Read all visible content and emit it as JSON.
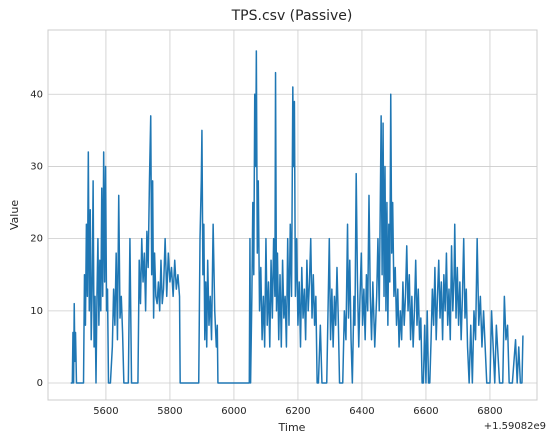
{
  "chart_data": {
    "type": "line",
    "title": "TPS.csv (Passive)",
    "xlabel": "Time",
    "ylabel": "Value",
    "x_offset_label": "+1.59082e9",
    "color": "#1f77b4",
    "grid": true,
    "xlim": [
      5419,
      6947
    ],
    "ylim": [
      -2.35,
      48.9
    ],
    "xticks": [
      5600,
      5800,
      6000,
      6200,
      6400,
      6600,
      6800
    ],
    "yticks": [
      0,
      10,
      20,
      30,
      40
    ],
    "x": [
      5490,
      5495,
      5497,
      5499,
      5501,
      5503,
      5505,
      5508,
      5512,
      5530,
      5533,
      5536,
      5539,
      5542,
      5545,
      5548,
      5551,
      5554,
      5557,
      5560,
      5563,
      5566,
      5569,
      5572,
      5575,
      5578,
      5581,
      5584,
      5587,
      5590,
      5593,
      5596,
      5599,
      5602,
      5605,
      5608,
      5611,
      5614,
      5620,
      5624,
      5628,
      5632,
      5636,
      5640,
      5644,
      5648,
      5652,
      5656,
      5670,
      5675,
      5680,
      5700,
      5704,
      5708,
      5712,
      5716,
      5720,
      5724,
      5728,
      5732,
      5736,
      5740,
      5743,
      5746,
      5749,
      5752,
      5756,
      5760,
      5764,
      5768,
      5772,
      5776,
      5780,
      5785,
      5790,
      5795,
      5800,
      5805,
      5810,
      5815,
      5820,
      5825,
      5830,
      5832,
      5890,
      5894,
      5898,
      5900,
      5903,
      5906,
      5909,
      5912,
      5915,
      5918,
      5922,
      5926,
      5930,
      5935,
      5940,
      5945,
      5948,
      5950,
      6048,
      6050,
      6052,
      6056,
      6059,
      6062,
      6065,
      6068,
      6070,
      6073,
      6076,
      6080,
      6084,
      6088,
      6092,
      6096,
      6100,
      6104,
      6108,
      6112,
      6116,
      6120,
      6124,
      6128,
      6130,
      6133,
      6136,
      6140,
      6144,
      6148,
      6152,
      6156,
      6160,
      6164,
      6168,
      6172,
      6176,
      6180,
      6184,
      6186,
      6189,
      6192,
      6196,
      6200,
      6204,
      6208,
      6212,
      6216,
      6220,
      6224,
      6228,
      6232,
      6236,
      6240,
      6244,
      6248,
      6252,
      6256,
      6260,
      6264,
      6270,
      6275,
      6280,
      6290,
      6294,
      6298,
      6302,
      6306,
      6310,
      6314,
      6318,
      6322,
      6326,
      6330,
      6340,
      6345,
      6350,
      6355,
      6358,
      6362,
      6366,
      6370,
      6375,
      6378,
      6382,
      6386,
      6390,
      6394,
      6398,
      6402,
      6406,
      6410,
      6414,
      6418,
      6422,
      6426,
      6430,
      6434,
      6440,
      6446,
      6450,
      6454,
      6458,
      6460,
      6463,
      6466,
      6469,
      6472,
      6475,
      6478,
      6481,
      6484,
      6487,
      6490,
      6493,
      6496,
      6500,
      6504,
      6508,
      6512,
      6516,
      6520,
      6524,
      6528,
      6532,
      6536,
      6540,
      6544,
      6548,
      6552,
      6556,
      6560,
      6564,
      6568,
      6572,
      6576,
      6580,
      6584,
      6588,
      6592,
      6596,
      6600,
      6604,
      6608,
      6612,
      6616,
      6620,
      6624,
      6628,
      6632,
      6636,
      6640,
      6644,
      6648,
      6652,
      6656,
      6660,
      6664,
      6668,
      6672,
      6676,
      6680,
      6684,
      6688,
      6690,
      6694,
      6698,
      6702,
      6706,
      6710,
      6714,
      6718,
      6722,
      6726,
      6730,
      6735,
      6740,
      6745,
      6750,
      6755,
      6760,
      6765,
      6770,
      6775,
      6780,
      6790,
      6800,
      6805,
      6810,
      6815,
      6820,
      6830,
      6840,
      6845,
      6850,
      6855,
      6860,
      6870,
      6880,
      6885,
      6890,
      6895,
      6900,
      6903,
      6905
    ],
    "values": [
      0,
      0,
      7,
      0,
      11,
      3,
      7,
      0,
      0,
      0,
      15,
      8,
      22,
      12,
      32,
      10,
      24,
      6,
      13,
      28,
      5,
      12,
      0,
      12,
      20,
      8,
      17,
      10,
      27,
      12,
      32,
      14,
      30,
      10,
      13,
      0,
      0,
      0,
      5,
      13,
      8,
      18,
      6,
      26,
      9,
      12,
      7,
      0,
      0,
      20,
      0,
      0,
      17,
      11,
      20,
      14,
      18,
      10,
      21,
      16,
      28,
      37,
      15,
      28,
      9,
      18,
      12,
      11,
      14,
      10,
      17,
      11,
      13,
      20,
      12,
      18,
      14,
      16,
      12,
      17,
      13,
      15,
      12,
      0,
      0,
      20,
      28,
      35,
      15,
      22,
      6,
      14,
      5,
      17,
      8,
      12,
      6,
      22,
      10,
      5,
      8,
      0,
      0,
      20,
      0,
      12,
      25,
      15,
      40,
      30,
      46,
      18,
      28,
      10,
      16,
      6,
      12,
      5,
      20,
      8,
      14,
      5,
      17,
      9,
      20,
      12,
      43,
      10,
      18,
      6,
      15,
      5,
      17,
      9,
      12,
      5,
      20,
      8,
      22,
      12,
      41,
      30,
      39,
      12,
      20,
      8,
      14,
      5,
      16,
      9,
      13,
      6,
      17,
      10,
      14,
      20,
      9,
      15,
      8,
      12,
      0,
      0,
      8,
      0,
      0,
      0,
      10,
      20,
      6,
      13,
      5,
      12,
      8,
      16,
      9,
      0,
      0,
      10,
      6,
      22,
      9,
      17,
      6,
      0,
      12,
      8,
      29,
      14,
      5,
      12,
      18,
      8,
      13,
      6,
      15,
      10,
      26,
      12,
      6,
      14,
      5,
      12,
      20,
      10,
      28,
      37,
      15,
      36,
      12,
      30,
      10,
      25,
      8,
      22,
      14,
      40,
      18,
      25,
      12,
      16,
      8,
      13,
      5,
      10,
      6,
      14,
      8,
      12,
      19,
      10,
      15,
      6,
      12,
      5,
      10,
      17,
      8,
      13,
      6,
      9,
      0,
      0,
      8,
      0,
      10,
      0,
      0,
      6,
      13,
      8,
      16,
      6,
      12,
      17,
      9,
      14,
      6,
      15,
      10,
      18,
      8,
      13,
      6,
      19,
      10,
      15,
      22,
      9,
      16,
      8,
      14,
      6,
      12,
      20,
      9,
      13,
      5,
      0,
      8,
      0,
      10,
      6,
      20,
      8,
      12,
      5,
      10,
      0,
      0,
      10,
      5,
      0,
      8,
      0,
      0,
      12,
      6,
      8,
      0,
      0,
      6,
      0,
      5,
      0,
      0,
      6.5,
      6.5
    ]
  }
}
